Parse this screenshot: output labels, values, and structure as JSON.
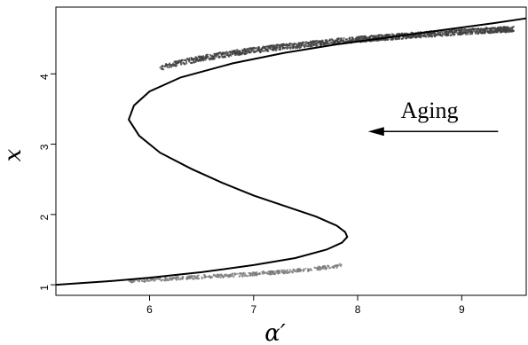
{
  "chart_data": {
    "type": "scatter",
    "title": "",
    "xlabel": "α′",
    "ylabel": "x",
    "xlim": [
      5.1,
      9.62
    ],
    "ylim": [
      0.85,
      4.95
    ],
    "x_ticks": [
      6,
      7,
      8,
      9
    ],
    "y_ticks": [
      1,
      2,
      3,
      4
    ],
    "x_tick_labels": [
      "6",
      "7",
      "8",
      "9"
    ],
    "y_tick_labels": [
      "1",
      "2",
      "3",
      "4"
    ],
    "grid": false,
    "legend": "none",
    "annotation": {
      "text": "Aging",
      "arrow_from": [
        9.35,
        3.18
      ],
      "arrow_to": [
        8.1,
        3.18
      ]
    },
    "series": [
      {
        "kind": "curve",
        "color": "#000000",
        "description_points": [
          [
            5.1,
            1.0
          ],
          [
            5.6,
            1.05
          ],
          [
            6.0,
            1.1
          ],
          [
            6.5,
            1.18
          ],
          [
            7.0,
            1.28
          ],
          [
            7.4,
            1.38
          ],
          [
            7.7,
            1.5
          ],
          [
            7.85,
            1.6
          ],
          [
            7.9,
            1.68
          ],
          [
            7.88,
            1.75
          ],
          [
            7.8,
            1.84
          ],
          [
            7.6,
            1.97
          ],
          [
            7.3,
            2.12
          ],
          [
            7.0,
            2.27
          ],
          [
            6.7,
            2.45
          ],
          [
            6.4,
            2.65
          ],
          [
            6.1,
            2.88
          ],
          [
            5.9,
            3.12
          ],
          [
            5.8,
            3.35
          ],
          [
            5.85,
            3.55
          ],
          [
            6.0,
            3.75
          ],
          [
            6.3,
            3.95
          ],
          [
            6.8,
            4.15
          ],
          [
            7.3,
            4.3
          ],
          [
            7.8,
            4.42
          ],
          [
            8.3,
            4.52
          ],
          [
            8.8,
            4.62
          ],
          [
            9.3,
            4.72
          ],
          [
            9.62,
            4.79
          ]
        ]
      },
      {
        "kind": "scatter",
        "color": "#555555",
        "clusters": [
          {
            "x_range": [
              5.8,
              7.85
            ],
            "band": "lower"
          },
          {
            "x_range": [
              6.1,
              9.5
            ],
            "band": "upper"
          }
        ]
      }
    ]
  }
}
